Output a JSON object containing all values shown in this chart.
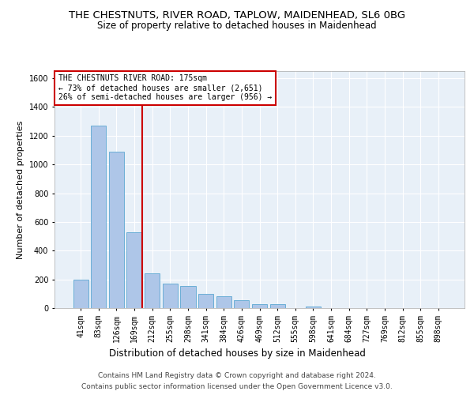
{
  "title_line1": "THE CHESTNUTS, RIVER ROAD, TAPLOW, MAIDENHEAD, SL6 0BG",
  "title_line2": "Size of property relative to detached houses in Maidenhead",
  "xlabel": "Distribution of detached houses by size in Maidenhead",
  "ylabel": "Number of detached properties",
  "bar_labels": [
    "41sqm",
    "83sqm",
    "126sqm",
    "169sqm",
    "212sqm",
    "255sqm",
    "298sqm",
    "341sqm",
    "384sqm",
    "426sqm",
    "469sqm",
    "512sqm",
    "555sqm",
    "598sqm",
    "641sqm",
    "684sqm",
    "727sqm",
    "769sqm",
    "812sqm",
    "855sqm",
    "898sqm"
  ],
  "bar_values": [
    200,
    1270,
    1090,
    530,
    240,
    170,
    155,
    100,
    85,
    55,
    30,
    30,
    0,
    10,
    0,
    0,
    0,
    0,
    0,
    0,
    0
  ],
  "bar_color": "#aec6e8",
  "bar_edge_color": "#6baed6",
  "property_line_color": "#cc0000",
  "ylim": [
    0,
    1650
  ],
  "yticks": [
    0,
    200,
    400,
    600,
    800,
    1000,
    1200,
    1400,
    1600
  ],
  "background_color": "#e8f0f8",
  "grid_color": "#ffffff",
  "annotation_text": "THE CHESTNUTS RIVER ROAD: 175sqm\n← 73% of detached houses are smaller (2,651)\n26% of semi-detached houses are larger (956) →",
  "annotation_box_color": "#ffffff",
  "annotation_box_edge": "#cc0000",
  "footer_line1": "Contains HM Land Registry data © Crown copyright and database right 2024.",
  "footer_line2": "Contains public sector information licensed under the Open Government Licence v3.0.",
  "title_fontsize": 9.5,
  "subtitle_fontsize": 8.5,
  "tick_fontsize": 7,
  "ylabel_fontsize": 8,
  "xlabel_fontsize": 8.5,
  "footer_fontsize": 6.5,
  "annotation_fontsize": 7
}
